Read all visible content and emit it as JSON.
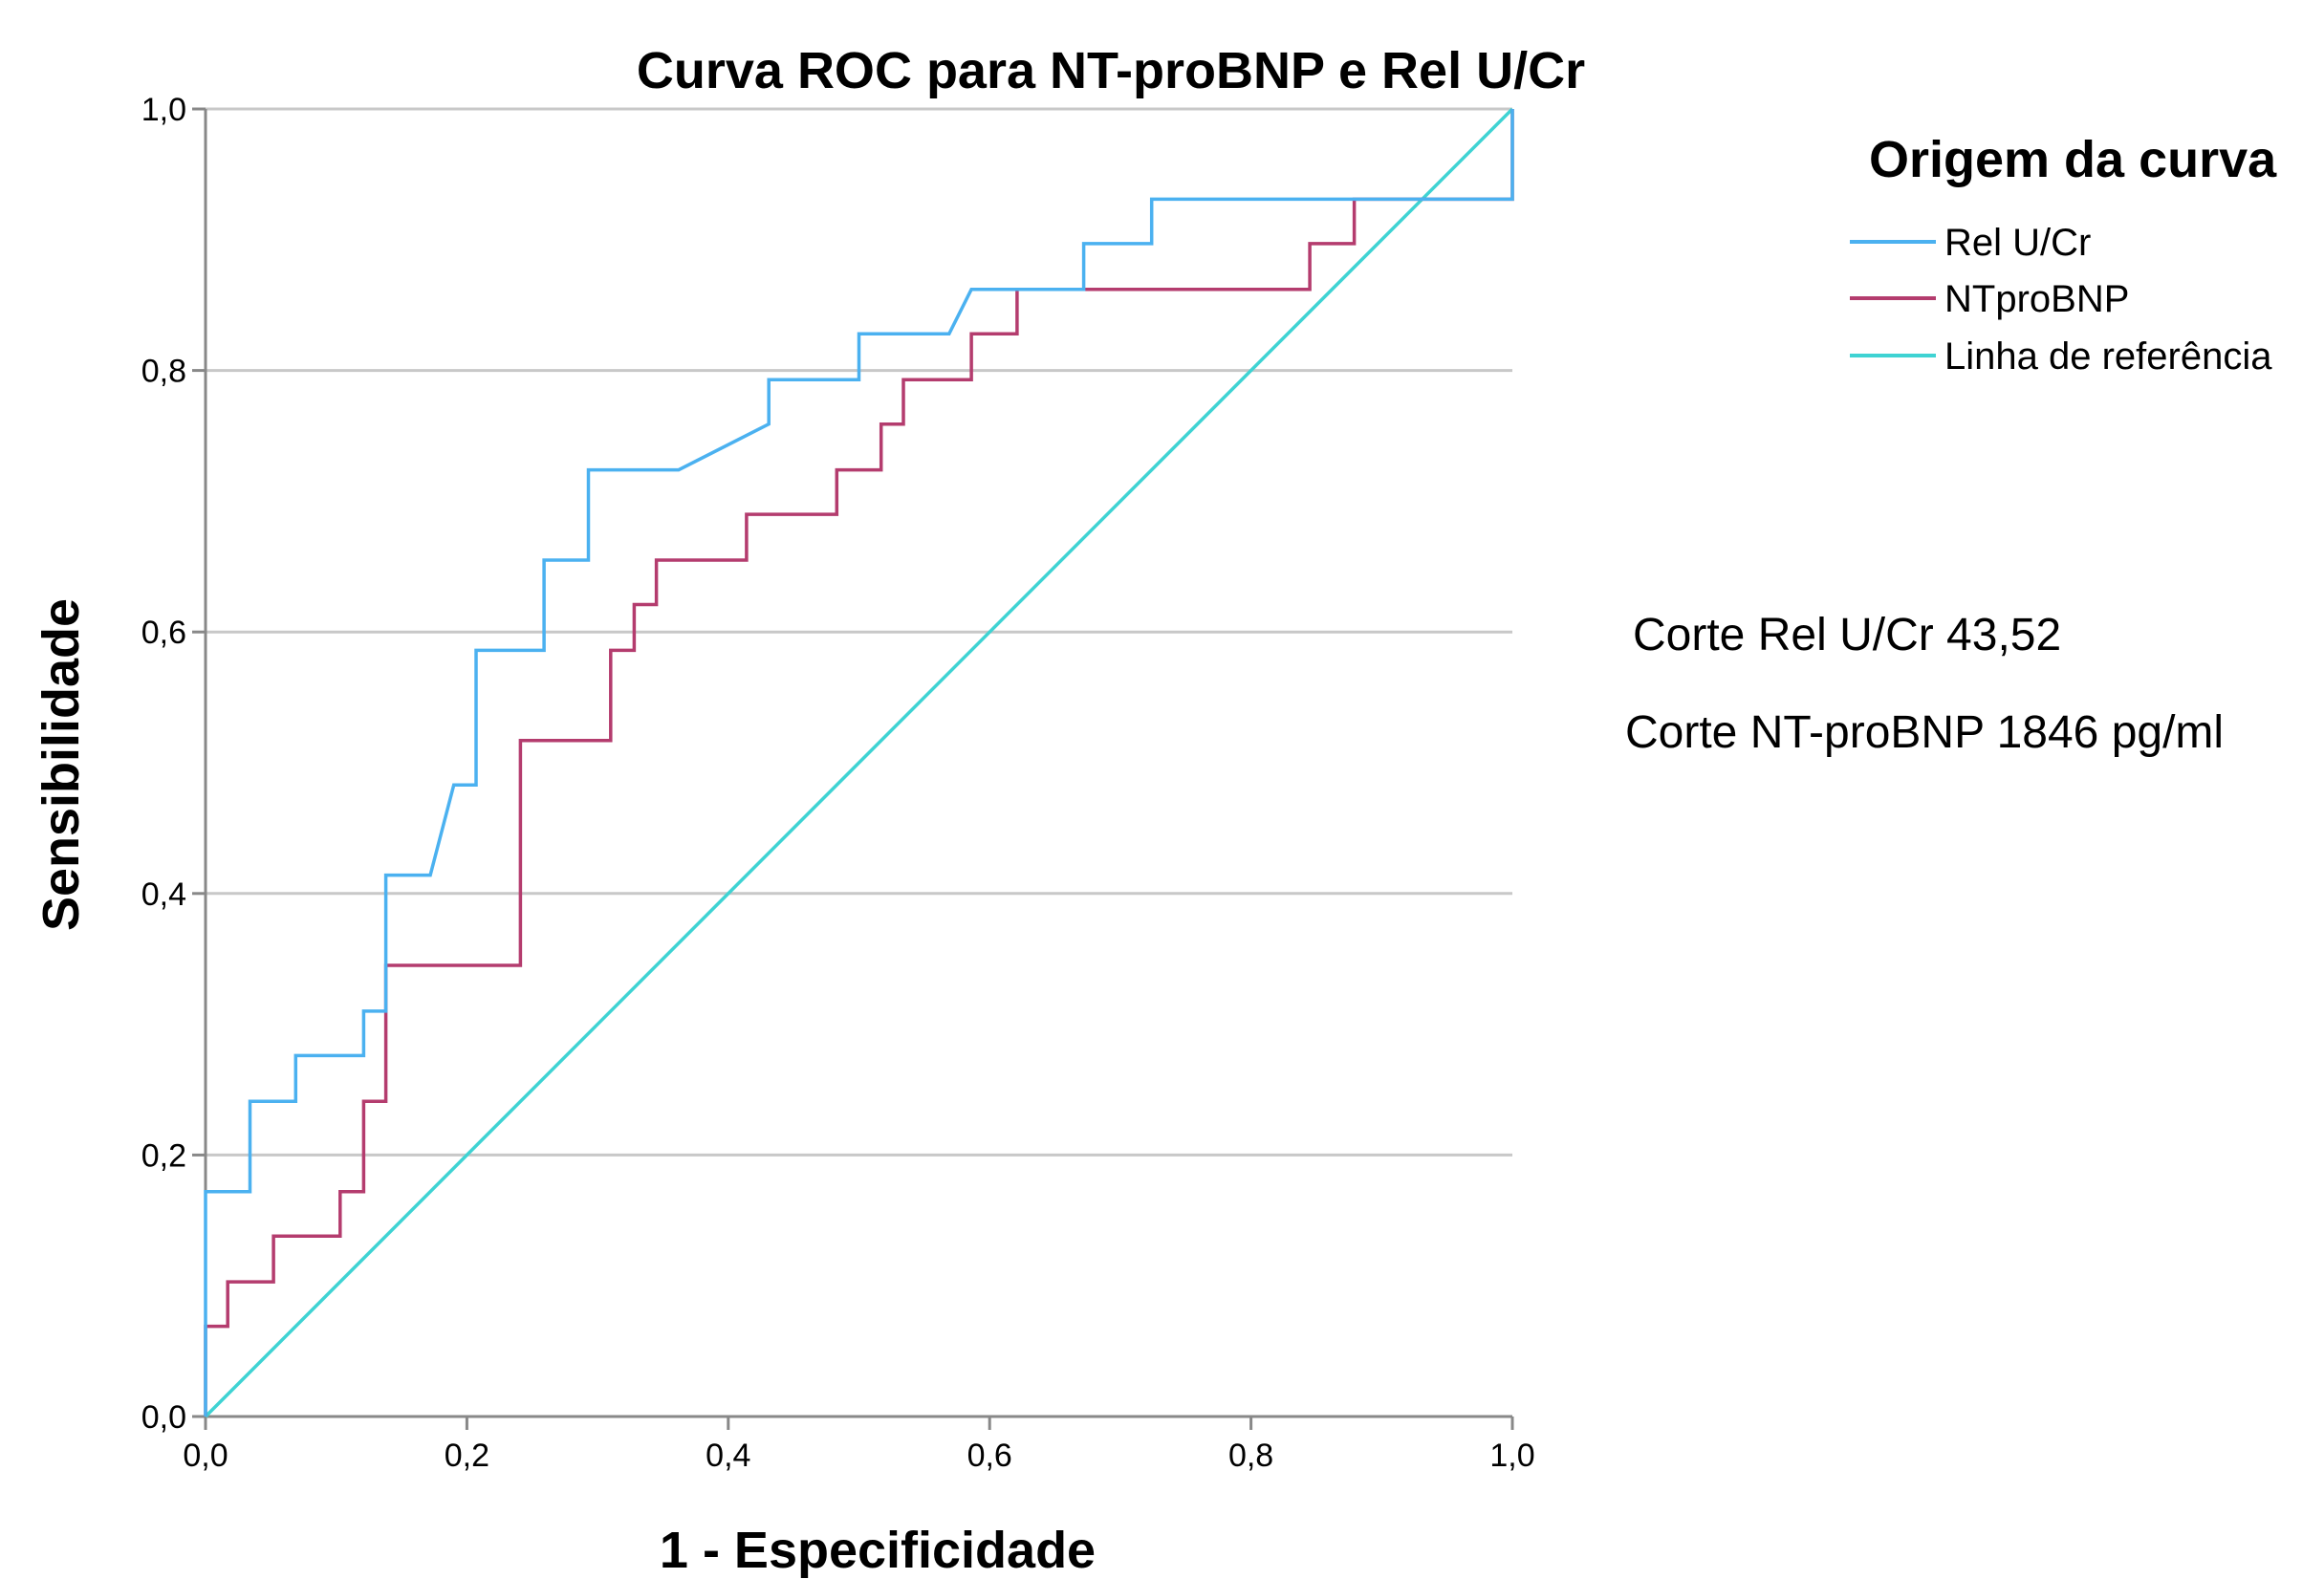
{
  "chart_data": {
    "type": "line",
    "title": "Curva ROC para NT-proBNP e Rel U/Cr",
    "xlabel": "1 - Especificidade",
    "ylabel": "Sensibilidade",
    "xlim": [
      0,
      1
    ],
    "ylim": [
      0,
      1
    ],
    "xticks": [
      "0,0",
      "0,2",
      "0,4",
      "0,6",
      "0,8",
      "1,0"
    ],
    "yticks": [
      "0,0",
      "0,2",
      "0,4",
      "0,6",
      "0,8",
      "1,0"
    ],
    "xtick_values": [
      0,
      0.2,
      0.4,
      0.6,
      0.8,
      1.0
    ],
    "ytick_values": [
      0,
      0.2,
      0.4,
      0.6,
      0.8,
      1.0
    ],
    "grid": "horizontal",
    "legend": {
      "title": "Origem da curva",
      "placement": "right"
    },
    "series": [
      {
        "name": "Rel U/Cr",
        "color": "#4bb1f0",
        "x": [
          0,
          0,
          0.034,
          0.034,
          0.069,
          0.069,
          0.121,
          0.121,
          0.138,
          0.138,
          0.172,
          0.19,
          0.207,
          0.207,
          0.259,
          0.259,
          0.293,
          0.293,
          0.362,
          0.431,
          0.431,
          0.5,
          0.5,
          0.569,
          0.586,
          0.621,
          0.672,
          0.672,
          0.724,
          0.724,
          1.0,
          1.0
        ],
        "y": [
          0,
          0.172,
          0.172,
          0.241,
          0.241,
          0.276,
          0.276,
          0.31,
          0.31,
          0.414,
          0.414,
          0.483,
          0.483,
          0.586,
          0.586,
          0.655,
          0.655,
          0.724,
          0.724,
          0.759,
          0.793,
          0.793,
          0.828,
          0.828,
          0.862,
          0.862,
          0.862,
          0.897,
          0.897,
          0.931,
          0.931,
          1.0
        ]
      },
      {
        "name": "NTproBNP",
        "color": "#b43c6e",
        "x": [
          0,
          0,
          0.017,
          0.017,
          0.052,
          0.052,
          0.103,
          0.103,
          0.121,
          0.121,
          0.138,
          0.138,
          0.241,
          0.241,
          0.31,
          0.31,
          0.328,
          0.328,
          0.345,
          0.345,
          0.414,
          0.414,
          0.483,
          0.483,
          0.517,
          0.517,
          0.534,
          0.534,
          0.586,
          0.586,
          0.621,
          0.621,
          0.845,
          0.845,
          0.879,
          0.879,
          1.0,
          1.0
        ],
        "y": [
          0,
          0.069,
          0.069,
          0.103,
          0.103,
          0.138,
          0.138,
          0.172,
          0.172,
          0.241,
          0.241,
          0.345,
          0.345,
          0.517,
          0.517,
          0.586,
          0.586,
          0.621,
          0.621,
          0.655,
          0.655,
          0.69,
          0.69,
          0.724,
          0.724,
          0.759,
          0.759,
          0.793,
          0.793,
          0.828,
          0.828,
          0.862,
          0.862,
          0.897,
          0.897,
          0.931,
          0.931,
          1.0
        ]
      },
      {
        "name": "Linha de referência",
        "color": "#3fd3d3",
        "x": [
          0,
          1
        ],
        "y": [
          0,
          1
        ]
      }
    ],
    "annotations": [
      "Corte Rel U/Cr 43,52",
      "Corte NT-proBNP 1846 pg/ml"
    ]
  }
}
